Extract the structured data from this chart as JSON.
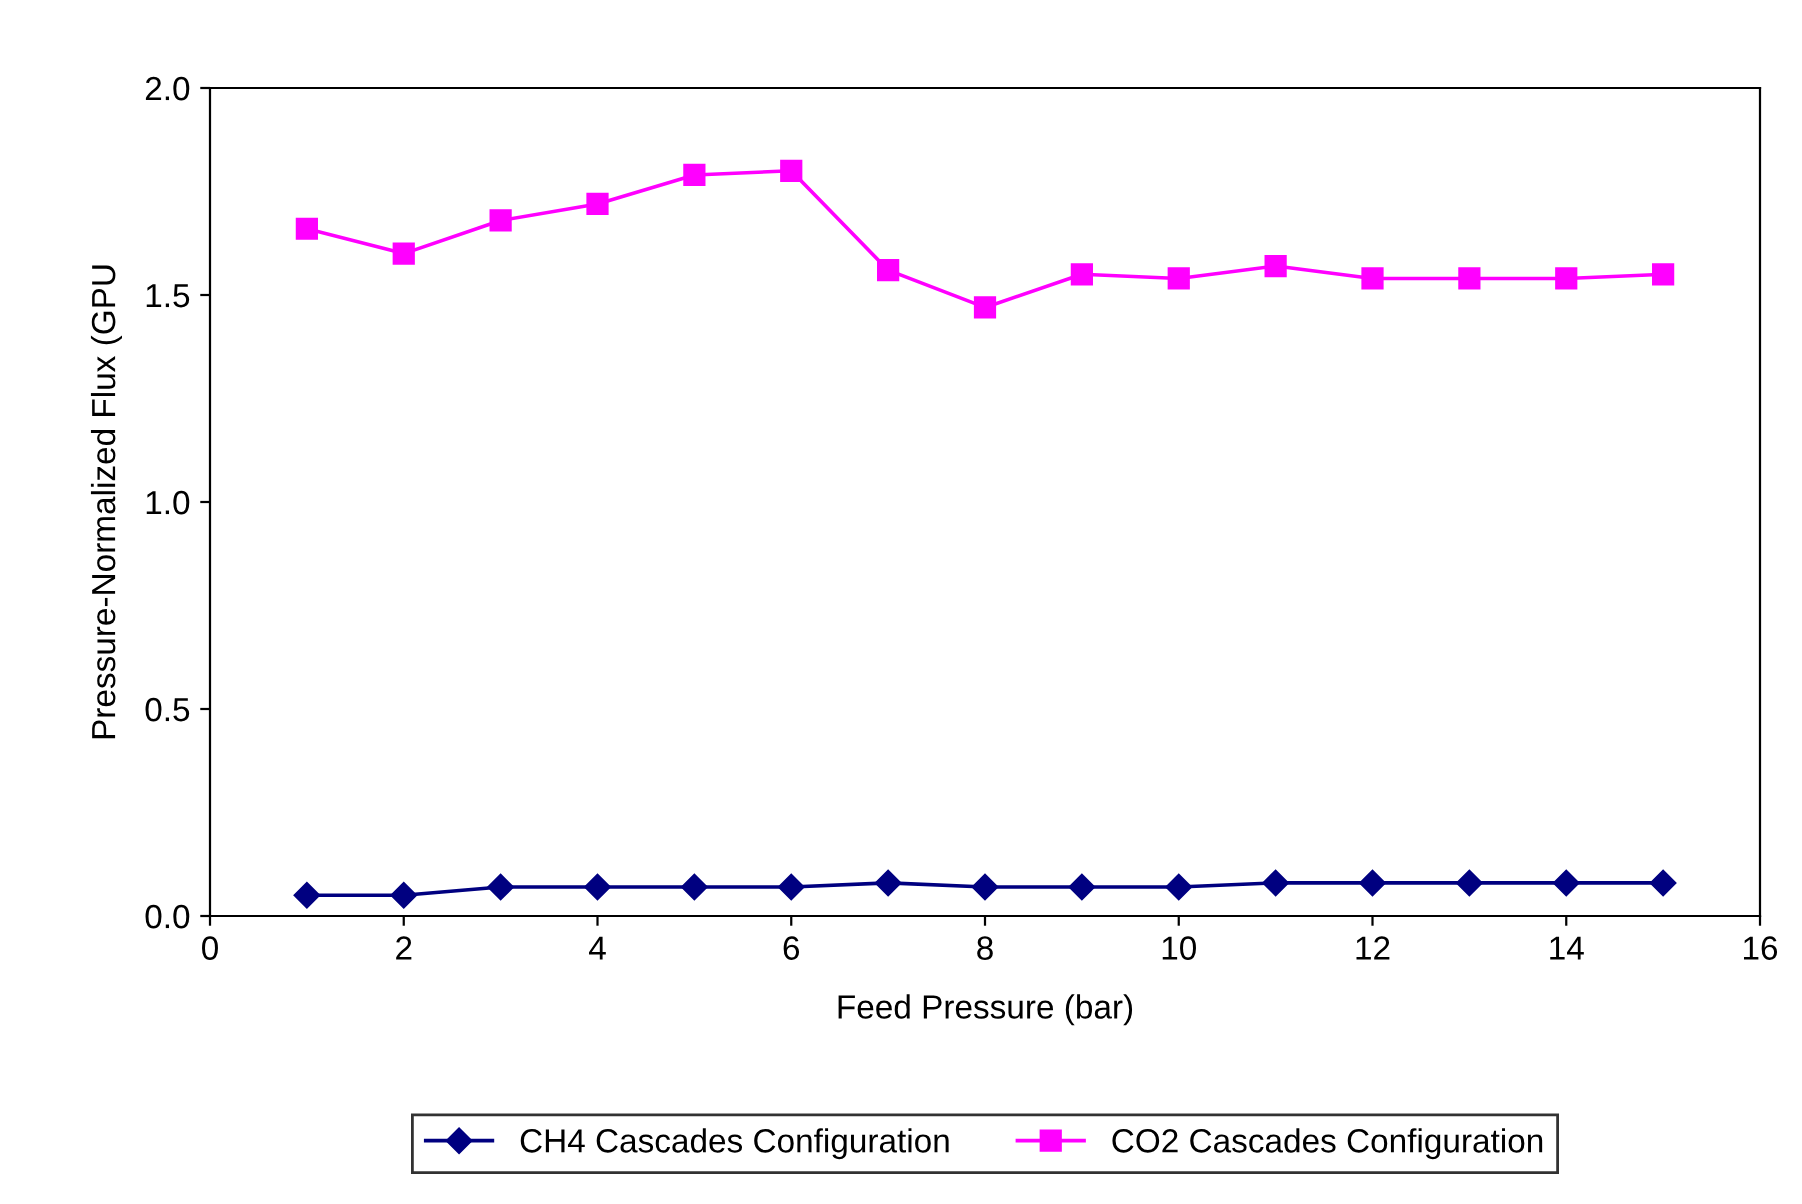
{
  "chart_data": {
    "type": "line",
    "xlabel": "Feed Pressure (bar)",
    "ylabel": "Pressure-Normalized Flux (GPU",
    "x": [
      1,
      2,
      3,
      4,
      5,
      6,
      7,
      8,
      9,
      10,
      11,
      12,
      13,
      14,
      15
    ],
    "series": [
      {
        "name": "CH4 Cascades Configuration",
        "color": "#000080",
        "marker": "diamond",
        "values": [
          0.05,
          0.05,
          0.07,
          0.07,
          0.07,
          0.07,
          0.08,
          0.07,
          0.07,
          0.07,
          0.08,
          0.08,
          0.08,
          0.08,
          0.08
        ]
      },
      {
        "name": "CO2 Cascades Configuration",
        "color": "#ff00ff",
        "marker": "square",
        "values": [
          1.66,
          1.6,
          1.68,
          1.72,
          1.79,
          1.8,
          1.56,
          1.47,
          1.55,
          1.54,
          1.57,
          1.54,
          1.54,
          1.54,
          1.55
        ]
      }
    ],
    "xlim": [
      0,
      16
    ],
    "xticks": [
      0,
      2,
      4,
      6,
      8,
      10,
      12,
      14,
      16
    ],
    "ylim": [
      0,
      2
    ],
    "yticks": [
      {
        "value": 0,
        "label": "0.0"
      },
      {
        "value": 0.5,
        "label": "0.5"
      },
      {
        "value": 1,
        "label": "1.0"
      },
      {
        "value": 1.5,
        "label": "1.5"
      },
      {
        "value": 2,
        "label": "2.0"
      }
    ],
    "grid": false,
    "legend": "bottom"
  }
}
